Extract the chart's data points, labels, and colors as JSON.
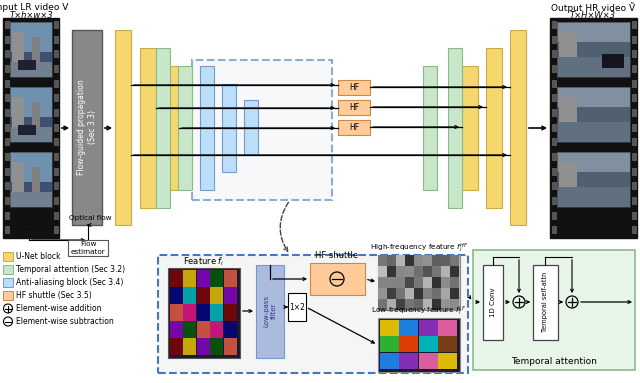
{
  "title_input": "Input LR video V",
  "title_input_sub": "T×h×w×3",
  "title_output": "Output HR video Ṽ",
  "title_output_sub": "T×H×W×3",
  "colors": {
    "unet_block": "#F5D76E",
    "temporal_attention": "#C8E6C9",
    "anti_aliasing": "#BBDEFB",
    "hf_shuttle": "#FFCC99",
    "flow_prop_block": "#888888",
    "temporal_attn_bg": "#E8F5E9",
    "white": "#FFFFFF",
    "black": "#000000"
  },
  "bg_color": "#FFFFFF"
}
